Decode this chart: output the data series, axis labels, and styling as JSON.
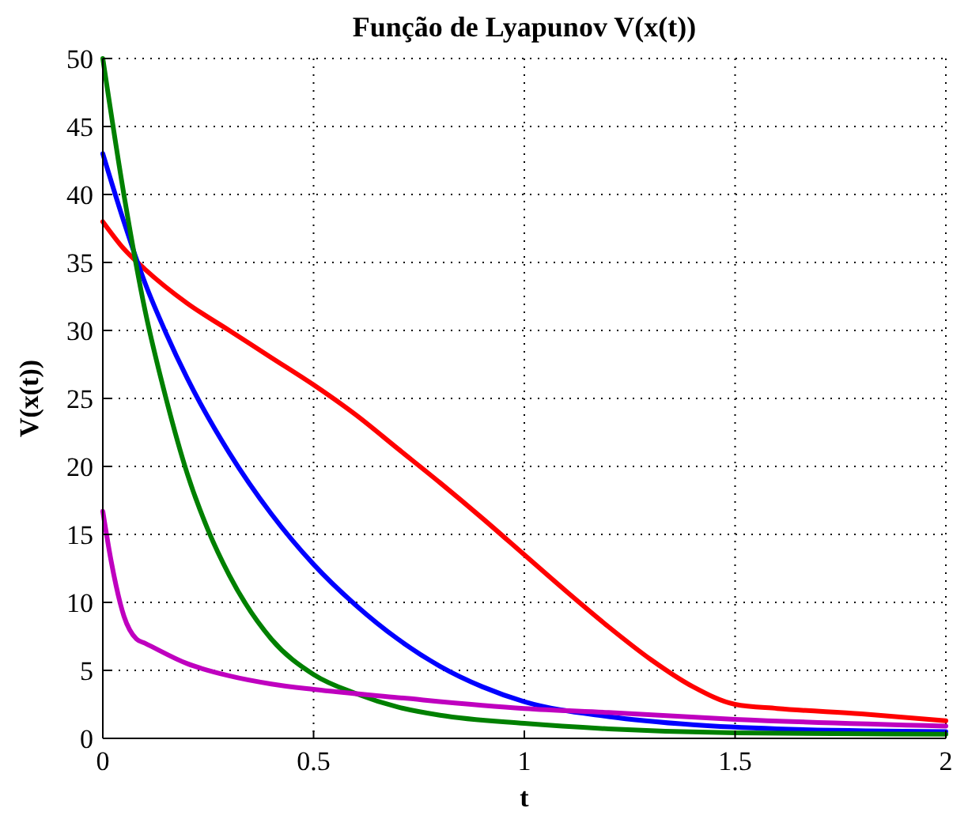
{
  "chart_data": {
    "type": "line",
    "title": "Função de Lyapunov V(x(t))",
    "xlabel": "t",
    "ylabel": "V(x(t))",
    "xlim": [
      0,
      2
    ],
    "ylim": [
      0,
      50
    ],
    "xticks": [
      0,
      0.5,
      1,
      1.5,
      2
    ],
    "yticks": [
      0,
      5,
      10,
      15,
      20,
      25,
      30,
      35,
      40,
      45,
      50
    ],
    "grid": true,
    "line_style": "solid",
    "marker": "none",
    "series": [
      {
        "color": "#ff0000",
        "x": [
          0,
          0.05,
          0.1,
          0.2,
          0.3,
          0.4,
          0.5,
          0.6,
          0.7,
          0.8,
          0.9,
          1.0,
          1.1,
          1.2,
          1.3,
          1.4,
          1.5,
          1.6,
          1.8,
          2.0
        ],
        "values": [
          38,
          36,
          34.5,
          32,
          30,
          28,
          26,
          23.8,
          21.3,
          18.8,
          16.2,
          13.5,
          10.8,
          8.2,
          5.8,
          3.8,
          2.5,
          2.2,
          1.8,
          1.3
        ]
      },
      {
        "color": "#0000ff",
        "x": [
          0,
          0.05,
          0.1,
          0.15,
          0.2,
          0.3,
          0.4,
          0.5,
          0.6,
          0.7,
          0.8,
          0.9,
          1.0,
          1.2,
          1.4,
          1.6,
          2.0
        ],
        "values": [
          43,
          38,
          33.5,
          29.8,
          26.5,
          21,
          16.5,
          12.8,
          9.8,
          7.3,
          5.3,
          3.8,
          2.7,
          1.6,
          1.0,
          0.7,
          0.5
        ]
      },
      {
        "color": "#008000",
        "x": [
          0,
          0.05,
          0.1,
          0.15,
          0.2,
          0.25,
          0.3,
          0.4,
          0.5,
          0.6,
          0.7,
          0.8,
          1.0,
          1.2,
          1.5,
          2.0
        ],
        "values": [
          50,
          40,
          31.5,
          25,
          19.5,
          15.3,
          12,
          7.3,
          4.7,
          3.3,
          2.3,
          1.7,
          1.1,
          0.7,
          0.4,
          0.3
        ]
      },
      {
        "color": "#bf00bf",
        "x": [
          0,
          0.02,
          0.05,
          0.08,
          0.1,
          0.2,
          0.3,
          0.4,
          0.5,
          0.7,
          1.0,
          1.2,
          1.5,
          2.0
        ],
        "values": [
          16.7,
          13,
          9,
          7.3,
          7,
          5.5,
          4.6,
          4.0,
          3.6,
          3.0,
          2.2,
          1.9,
          1.4,
          0.9
        ]
      }
    ]
  }
}
